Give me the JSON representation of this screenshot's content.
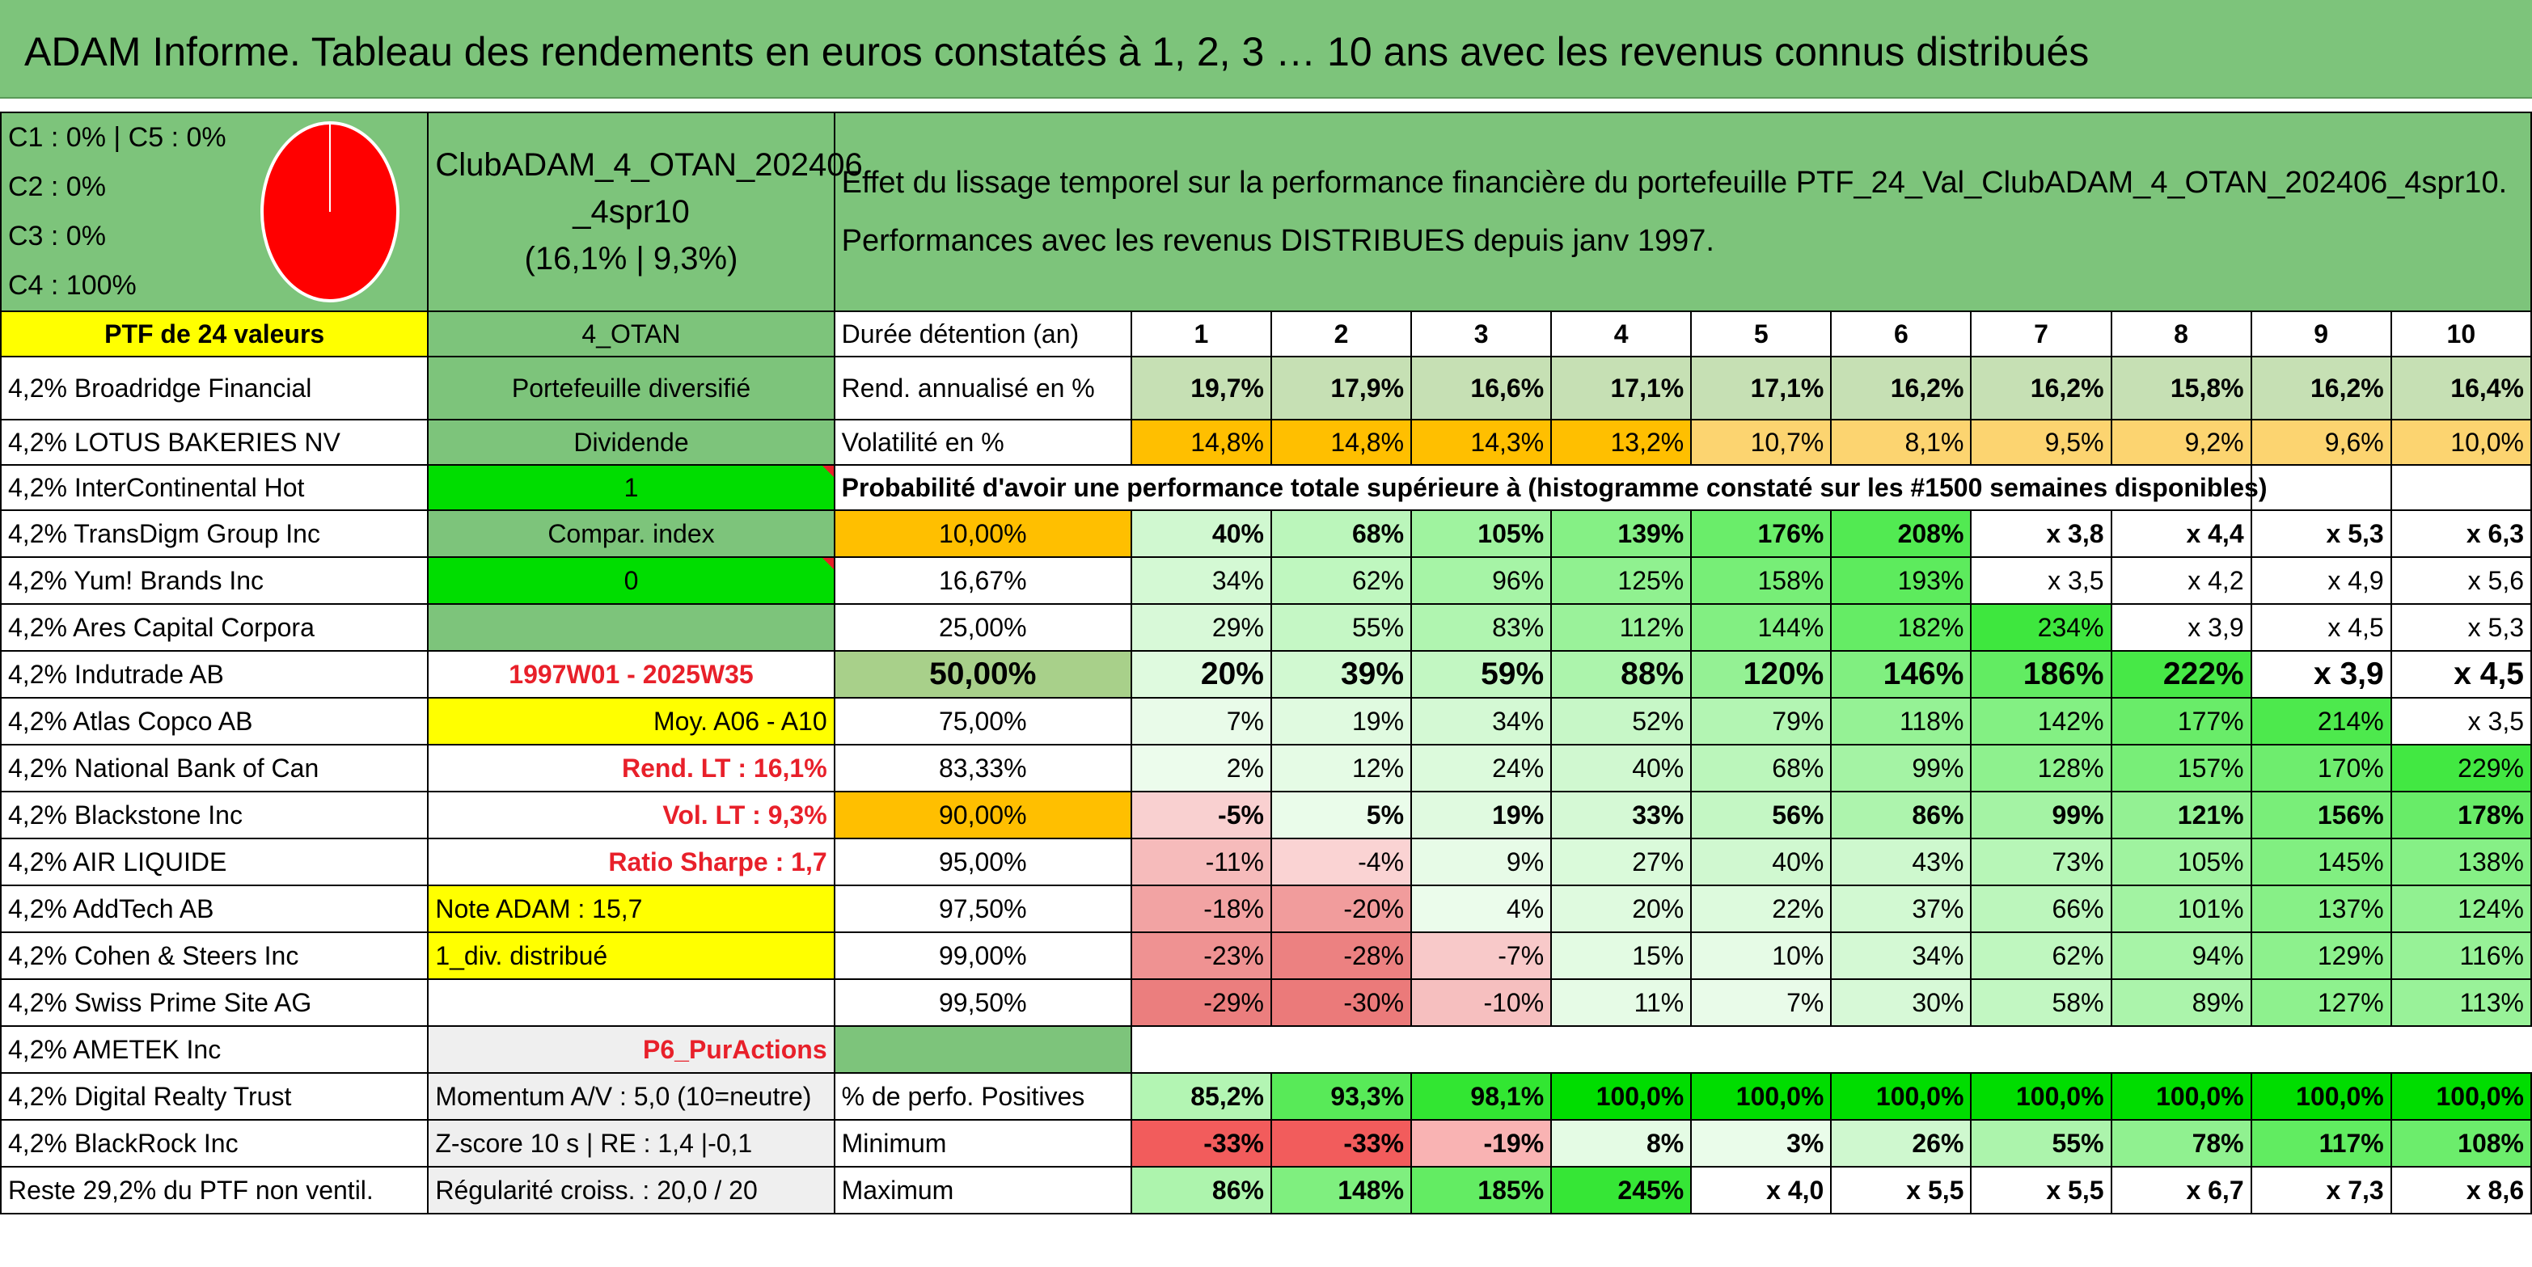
{
  "title": "ADAM Informe. Tableau des rendements en euros constatés à 1, 2, 3 … 10 ans avec les revenus connus distribués",
  "legend": [
    "C1 : 0% | C5 : 0%",
    "C2 : 0%",
    "C3 : 0%",
    "C4 : 100%"
  ],
  "pie": {
    "slices": [
      {
        "label": "C4",
        "value": 100,
        "color": "#ff0000"
      }
    ]
  },
  "portfolio_name": "ClubADAM_4_OTAN_202406_4spr10",
  "portfolio_name_l1": "ClubADAM_4_OTAN_202406",
  "portfolio_name_l2": "_4spr10",
  "portfolio_stats": "(16,1% | 9,3%)",
  "header_text_l1": "Effet du lissage temporel sur la performance financière du portefeuille PTF_24_Val_ClubADAM_4_OTAN_202406_4spr10.",
  "header_text_l2": "Performances avec les revenus DISTRIBUES depuis janv 1997.",
  "ptf_label": "PTF de 24 valeurs",
  "club_code": "4_OTAN",
  "col_header": "Durée détention (an)",
  "years": [
    "1",
    "2",
    "3",
    "4",
    "5",
    "6",
    "7",
    "8",
    "9",
    "10"
  ],
  "holdings": [
    "4,2% Broadridge Financial",
    "4,2% LOTUS BAKERIES NV",
    "4,2% InterContinental Hot",
    "4,2% TransDigm Group Inc",
    "4,2% Yum! Brands Inc",
    "4,2% Ares Capital Corpora",
    "4,2% Indutrade AB",
    "4,2% Atlas Copco AB",
    "4,2% National Bank of Can",
    "4,2% Blackstone Inc",
    "4,2% AIR LIQUIDE",
    "4,2% AddTech AB",
    "4,2% Cohen & Steers Inc",
    "4,2% Swiss Prime Site AG",
    "4,2% AMETEK Inc",
    "4,2% Digital Realty Trust",
    "4,2% BlackRock Inc",
    "Reste 29,2% du PTF non ventil."
  ],
  "info": {
    "portefeuille": "Portefeuille diversifié",
    "dividende": "Dividende",
    "val_1": "1",
    "compar": "Compar. index",
    "val_0": "0",
    "period": "1997W01 - 2025W35",
    "moy": "Moy. A06 - A10",
    "rend_lt": "Rend. LT : 16,1%",
    "vol_lt": "Vol. LT : 9,3%",
    "sharpe": "Ratio Sharpe : 1,7",
    "note": "Note ADAM : 15,7",
    "div": "1_div. distribué",
    "pur": "P6_PurActions",
    "momentum": "Momentum A/V : 5,0 (10=neutre)",
    "zscore": "Z-score 10 s | RE : 1,4 |-0,1",
    "regul": "Régularité croiss. : 20,0 / 20"
  },
  "rend_label": "Rend. annualisé en %",
  "rend": [
    "19,7%",
    "17,9%",
    "16,6%",
    "17,1%",
    "17,1%",
    "16,2%",
    "16,2%",
    "15,8%",
    "16,2%",
    "16,4%"
  ],
  "vol_label": "Volatilité en %",
  "vol": [
    "14,8%",
    "14,8%",
    "14,3%",
    "13,2%",
    "10,7%",
    "8,1%",
    "9,5%",
    "9,2%",
    "9,6%",
    "10,0%"
  ],
  "proba_title": "Probabilité d'avoir une performance totale supérieure à (histogramme constaté sur les #1500 semaines disponibles)",
  "proba_rows": [
    {
      "label": "10,00%",
      "values": [
        "40%",
        "68%",
        "105%",
        "139%",
        "176%",
        "208%",
        "x 3,8",
        "x 4,4",
        "x 5,3",
        "x 6,3"
      ]
    },
    {
      "label": "16,67%",
      "values": [
        "34%",
        "62%",
        "96%",
        "125%",
        "158%",
        "193%",
        "x 3,5",
        "x 4,2",
        "x 4,9",
        "x 5,6"
      ]
    },
    {
      "label": "25,00%",
      "values": [
        "29%",
        "55%",
        "83%",
        "112%",
        "144%",
        "182%",
        "234%",
        "x 3,9",
        "x 4,5",
        "x 5,3"
      ]
    },
    {
      "label": "50,00%",
      "values": [
        "20%",
        "39%",
        "59%",
        "88%",
        "120%",
        "146%",
        "186%",
        "222%",
        "x 3,9",
        "x 4,5"
      ]
    },
    {
      "label": "75,00%",
      "values": [
        "7%",
        "19%",
        "34%",
        "52%",
        "79%",
        "118%",
        "142%",
        "177%",
        "214%",
        "x 3,5"
      ]
    },
    {
      "label": "83,33%",
      "values": [
        "2%",
        "12%",
        "24%",
        "40%",
        "68%",
        "99%",
        "128%",
        "157%",
        "170%",
        "229%"
      ]
    },
    {
      "label": "90,00%",
      "values": [
        "-5%",
        "5%",
        "19%",
        "33%",
        "56%",
        "86%",
        "99%",
        "121%",
        "156%",
        "178%"
      ]
    },
    {
      "label": "95,00%",
      "values": [
        "-11%",
        "-4%",
        "9%",
        "27%",
        "40%",
        "43%",
        "73%",
        "105%",
        "145%",
        "138%"
      ]
    },
    {
      "label": "97,50%",
      "values": [
        "-18%",
        "-20%",
        "4%",
        "20%",
        "22%",
        "37%",
        "66%",
        "101%",
        "137%",
        "124%"
      ]
    },
    {
      "label": "99,00%",
      "values": [
        "-23%",
        "-28%",
        "-7%",
        "15%",
        "10%",
        "34%",
        "62%",
        "94%",
        "129%",
        "116%"
      ]
    },
    {
      "label": "99,50%",
      "values": [
        "-29%",
        "-30%",
        "-10%",
        "11%",
        "7%",
        "30%",
        "58%",
        "89%",
        "127%",
        "113%"
      ]
    }
  ],
  "pos_label": "% de perfo. Positives",
  "pos": [
    "85,2%",
    "93,3%",
    "98,1%",
    "100,0%",
    "100,0%",
    "100,0%",
    "100,0%",
    "100,0%",
    "100,0%",
    "100,0%"
  ],
  "min_label": "Minimum",
  "min": [
    "-33%",
    "-33%",
    "-19%",
    "8%",
    "3%",
    "26%",
    "55%",
    "78%",
    "117%",
    "108%"
  ],
  "max_label": "Maximum",
  "max": [
    "86%",
    "148%",
    "185%",
    "245%",
    "x 4,0",
    "x 5,5",
    "x 5,5",
    "x 6,7",
    "x 7,3",
    "x 8,6"
  ],
  "colors": {
    "header_green": "#7dc47b",
    "bright_green": "#00dd00",
    "yellow": "#ffff00",
    "orange": "#ffbf00",
    "red_text": "#e8202a"
  }
}
